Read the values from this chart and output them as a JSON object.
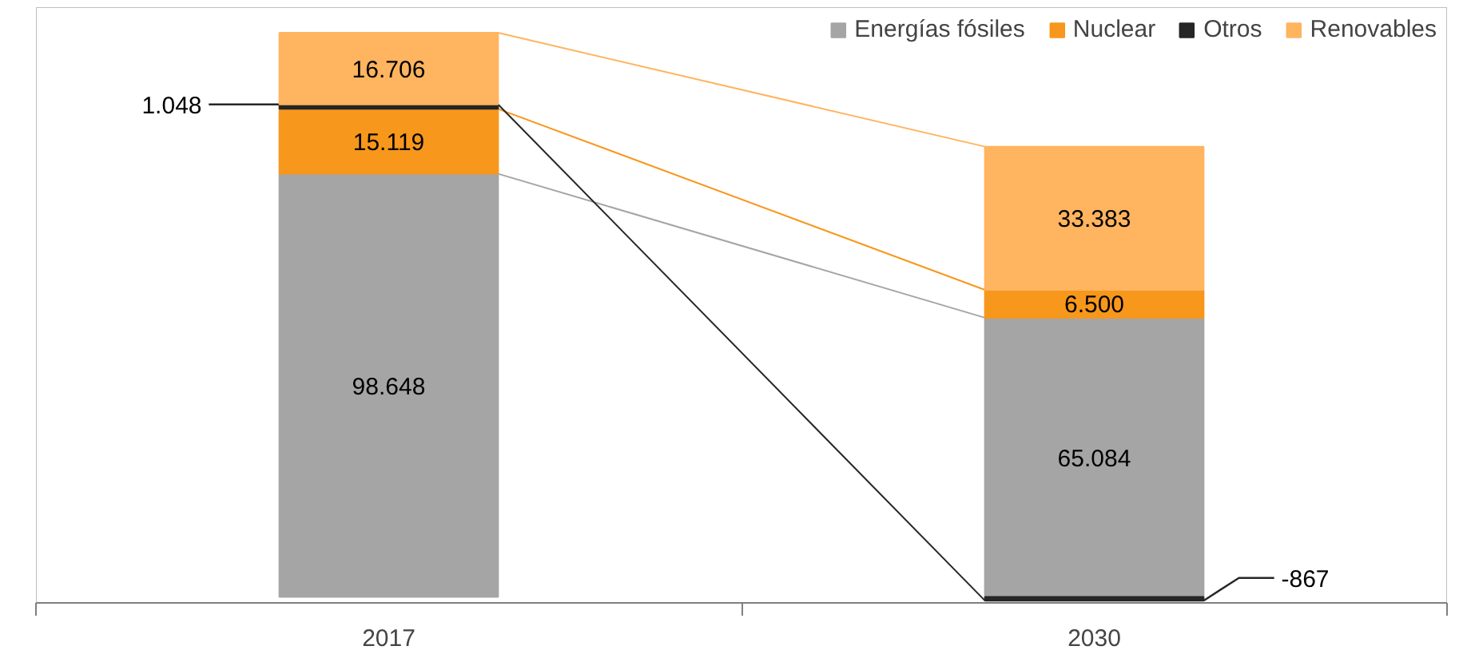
{
  "chart_data": {
    "type": "bar",
    "stacked": true,
    "categories": [
      "2017",
      "2030"
    ],
    "series": [
      {
        "name": "Energías fósiles",
        "color": "#a5a5a5",
        "values": [
          98648,
          65084
        ],
        "value_labels": [
          "98.648",
          "65.084"
        ]
      },
      {
        "name": "Nuclear",
        "color": "#f7971c",
        "values": [
          15119,
          6500
        ],
        "value_labels": [
          "15.119",
          "6.500"
        ]
      },
      {
        "name": "Otros",
        "color": "#262626",
        "values": [
          1048,
          -867
        ],
        "value_labels": [
          "1.048",
          "-867"
        ]
      },
      {
        "name": "Renovables",
        "color": "#ffb45f",
        "values": [
          16706,
          33383
        ],
        "value_labels": [
          "16.706",
          "33.383"
        ]
      }
    ],
    "legend": "top right",
    "grid": false
  }
}
